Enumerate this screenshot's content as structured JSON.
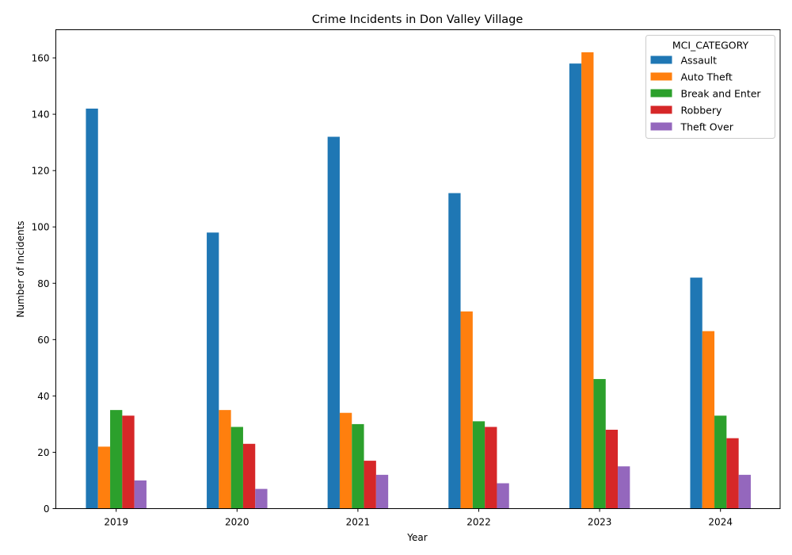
{
  "chart_data": {
    "type": "bar",
    "title": "Crime Incidents in Don Valley Village",
    "xlabel": "Year",
    "ylabel": "Number of Incidents",
    "categories": [
      "2019",
      "2020",
      "2021",
      "2022",
      "2023",
      "2024"
    ],
    "ylim": [
      0,
      170
    ],
    "yticks": [
      0,
      20,
      40,
      60,
      80,
      100,
      120,
      140,
      160
    ],
    "grid": false,
    "legend": {
      "title": "MCI_CATEGORY",
      "placement": "top-right"
    },
    "series": [
      {
        "name": "Assault",
        "color": "#1f77b4",
        "values": [
          142,
          98,
          132,
          112,
          158,
          82
        ]
      },
      {
        "name": "Auto Theft",
        "color": "#ff7f0e",
        "values": [
          22,
          35,
          34,
          70,
          162,
          63
        ]
      },
      {
        "name": "Break and Enter",
        "color": "#2ca02c",
        "values": [
          35,
          29,
          30,
          31,
          46,
          33
        ]
      },
      {
        "name": "Robbery",
        "color": "#d62728",
        "values": [
          33,
          23,
          17,
          29,
          28,
          25
        ]
      },
      {
        "name": "Theft Over",
        "color": "#9467bd",
        "values": [
          10,
          7,
          12,
          9,
          15,
          12
        ]
      }
    ]
  }
}
